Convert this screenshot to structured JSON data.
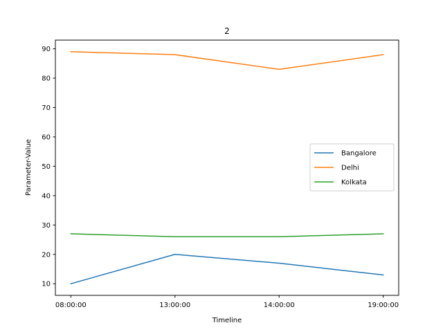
{
  "chart_data": {
    "type": "line",
    "title": "2",
    "xlabel": "Timeline",
    "ylabel": "Parameter-Value",
    "categories": [
      "08:00:00",
      "13:00:00",
      "14:00:00",
      "19:00:00"
    ],
    "ylim": [
      6.05,
      92.95
    ],
    "yticks": [
      10,
      20,
      30,
      40,
      50,
      60,
      70,
      80,
      90
    ],
    "grid": false,
    "legend_position": "center-right",
    "series": [
      {
        "name": "Bangalore",
        "color": "#1f77b4",
        "values": [
          10,
          20,
          17,
          13
        ]
      },
      {
        "name": "Delhi",
        "color": "#ff7f0e",
        "values": [
          89,
          88,
          83,
          88
        ]
      },
      {
        "name": "Kolkata",
        "color": "#2ca02c",
        "values": [
          27,
          26,
          26,
          27
        ]
      }
    ]
  }
}
